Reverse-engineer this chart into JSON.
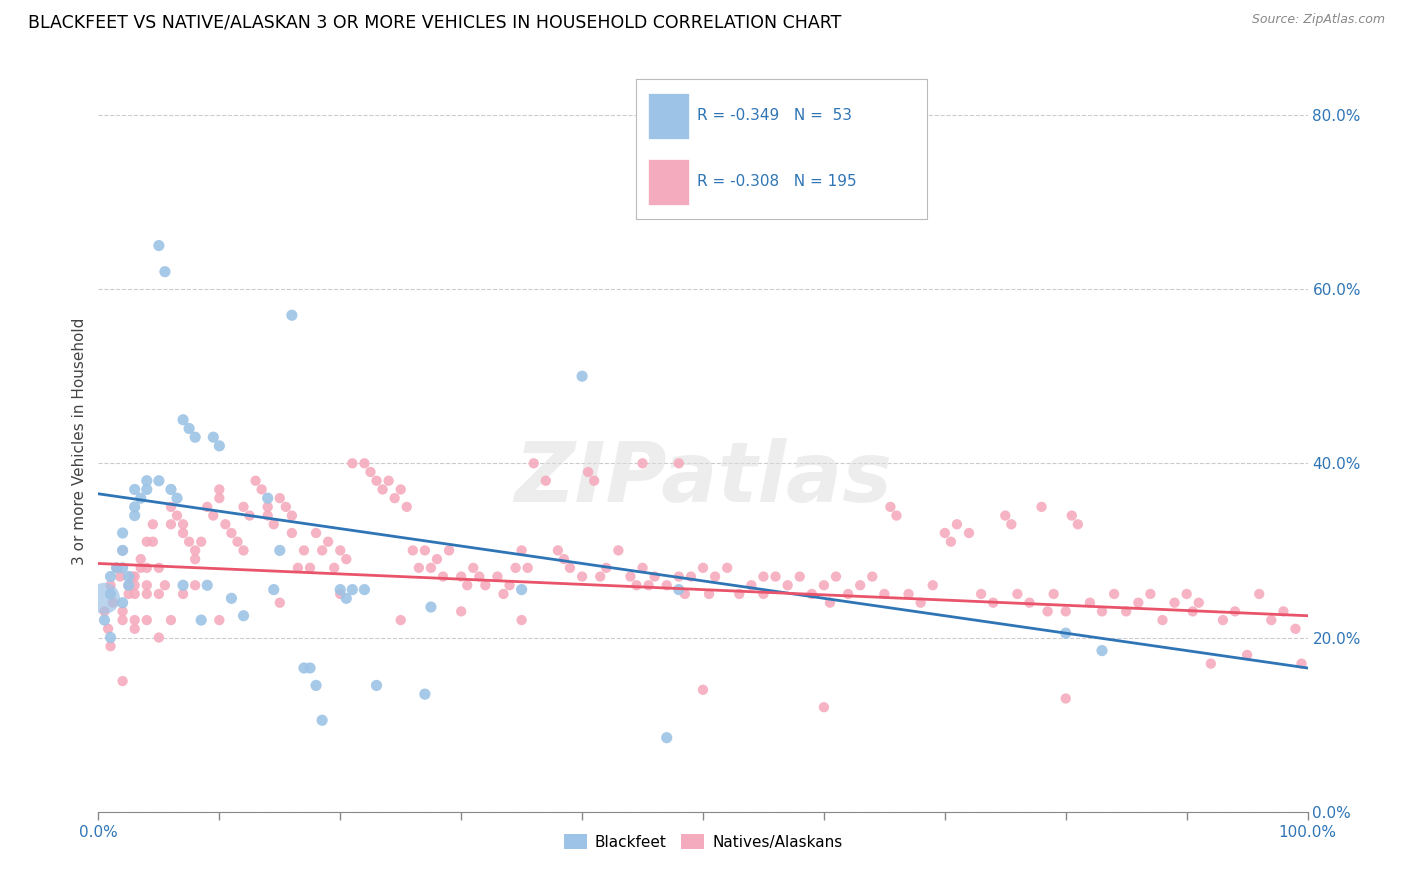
{
  "title": "BLACKFEET VS NATIVE/ALASKAN 3 OR MORE VEHICLES IN HOUSEHOLD CORRELATION CHART",
  "source": "Source: ZipAtlas.com",
  "ylabel": "3 or more Vehicles in Household",
  "xlim": [
    0,
    1.0
  ],
  "ylim": [
    0,
    0.85
  ],
  "xticks_major": [
    0.0,
    0.1,
    0.2,
    0.3,
    0.4,
    0.5,
    0.6,
    0.7,
    0.8,
    0.9,
    1.0
  ],
  "xticks_labeled": [
    0.0,
    1.0
  ],
  "yticks_right": [
    0.0,
    0.2,
    0.4,
    0.6,
    0.8
  ],
  "blue_R": -0.349,
  "blue_N": 53,
  "pink_R": -0.308,
  "pink_N": 195,
  "blue_color": "#9DC3E6",
  "pink_color": "#F4ABBD",
  "blue_line_color": "#2F75B6",
  "pink_line_color": "#E9546B",
  "watermark": "ZIPatlas",
  "legend_label_blue": "Blackfeet",
  "legend_label_pink": "Natives/Alaskans",
  "blue_scatter": [
    [
      0.005,
      0.22
    ],
    [
      0.01,
      0.2
    ],
    [
      0.01,
      0.25
    ],
    [
      0.01,
      0.27
    ],
    [
      0.015,
      0.28
    ],
    [
      0.02,
      0.28
    ],
    [
      0.02,
      0.24
    ],
    [
      0.02,
      0.3
    ],
    [
      0.02,
      0.32
    ],
    [
      0.025,
      0.27
    ],
    [
      0.025,
      0.26
    ],
    [
      0.03,
      0.35
    ],
    [
      0.03,
      0.34
    ],
    [
      0.03,
      0.37
    ],
    [
      0.035,
      0.36
    ],
    [
      0.04,
      0.38
    ],
    [
      0.04,
      0.37
    ],
    [
      0.05,
      0.65
    ],
    [
      0.055,
      0.62
    ],
    [
      0.05,
      0.38
    ],
    [
      0.06,
      0.37
    ],
    [
      0.065,
      0.36
    ],
    [
      0.07,
      0.45
    ],
    [
      0.075,
      0.44
    ],
    [
      0.07,
      0.26
    ],
    [
      0.08,
      0.43
    ],
    [
      0.085,
      0.22
    ],
    [
      0.09,
      0.26
    ],
    [
      0.095,
      0.43
    ],
    [
      0.1,
      0.42
    ],
    [
      0.11,
      0.245
    ],
    [
      0.12,
      0.225
    ],
    [
      0.14,
      0.36
    ],
    [
      0.145,
      0.255
    ],
    [
      0.15,
      0.3
    ],
    [
      0.16,
      0.57
    ],
    [
      0.17,
      0.165
    ],
    [
      0.175,
      0.165
    ],
    [
      0.18,
      0.145
    ],
    [
      0.185,
      0.105
    ],
    [
      0.2,
      0.255
    ],
    [
      0.205,
      0.245
    ],
    [
      0.21,
      0.255
    ],
    [
      0.22,
      0.255
    ],
    [
      0.23,
      0.145
    ],
    [
      0.27,
      0.135
    ],
    [
      0.275,
      0.235
    ],
    [
      0.35,
      0.255
    ],
    [
      0.4,
      0.5
    ],
    [
      0.47,
      0.085
    ],
    [
      0.48,
      0.255
    ],
    [
      0.8,
      0.205
    ],
    [
      0.83,
      0.185
    ]
  ],
  "pink_scatter": [
    [
      0.005,
      0.23
    ],
    [
      0.008,
      0.21
    ],
    [
      0.01,
      0.19
    ],
    [
      0.01,
      0.26
    ],
    [
      0.012,
      0.24
    ],
    [
      0.015,
      0.28
    ],
    [
      0.018,
      0.27
    ],
    [
      0.02,
      0.3
    ],
    [
      0.02,
      0.23
    ],
    [
      0.02,
      0.22
    ],
    [
      0.025,
      0.26
    ],
    [
      0.025,
      0.25
    ],
    [
      0.028,
      0.27
    ],
    [
      0.03,
      0.21
    ],
    [
      0.03,
      0.27
    ],
    [
      0.03,
      0.26
    ],
    [
      0.03,
      0.25
    ],
    [
      0.035,
      0.28
    ],
    [
      0.035,
      0.29
    ],
    [
      0.04,
      0.31
    ],
    [
      0.04,
      0.28
    ],
    [
      0.04,
      0.26
    ],
    [
      0.04,
      0.25
    ],
    [
      0.045,
      0.31
    ],
    [
      0.045,
      0.33
    ],
    [
      0.05,
      0.28
    ],
    [
      0.05,
      0.25
    ],
    [
      0.055,
      0.26
    ],
    [
      0.06,
      0.35
    ],
    [
      0.06,
      0.33
    ],
    [
      0.065,
      0.34
    ],
    [
      0.07,
      0.33
    ],
    [
      0.07,
      0.32
    ],
    [
      0.075,
      0.31
    ],
    [
      0.08,
      0.3
    ],
    [
      0.08,
      0.29
    ],
    [
      0.085,
      0.31
    ],
    [
      0.09,
      0.35
    ],
    [
      0.095,
      0.34
    ],
    [
      0.1,
      0.36
    ],
    [
      0.1,
      0.37
    ],
    [
      0.105,
      0.33
    ],
    [
      0.11,
      0.32
    ],
    [
      0.115,
      0.31
    ],
    [
      0.12,
      0.3
    ],
    [
      0.12,
      0.35
    ],
    [
      0.125,
      0.34
    ],
    [
      0.13,
      0.38
    ],
    [
      0.135,
      0.37
    ],
    [
      0.14,
      0.35
    ],
    [
      0.14,
      0.34
    ],
    [
      0.145,
      0.33
    ],
    [
      0.15,
      0.36
    ],
    [
      0.155,
      0.35
    ],
    [
      0.16,
      0.34
    ],
    [
      0.16,
      0.32
    ],
    [
      0.165,
      0.28
    ],
    [
      0.17,
      0.3
    ],
    [
      0.175,
      0.28
    ],
    [
      0.18,
      0.32
    ],
    [
      0.185,
      0.3
    ],
    [
      0.19,
      0.31
    ],
    [
      0.195,
      0.28
    ],
    [
      0.2,
      0.3
    ],
    [
      0.205,
      0.29
    ],
    [
      0.21,
      0.4
    ],
    [
      0.22,
      0.4
    ],
    [
      0.225,
      0.39
    ],
    [
      0.23,
      0.38
    ],
    [
      0.235,
      0.37
    ],
    [
      0.24,
      0.38
    ],
    [
      0.245,
      0.36
    ],
    [
      0.25,
      0.37
    ],
    [
      0.255,
      0.35
    ],
    [
      0.26,
      0.3
    ],
    [
      0.265,
      0.28
    ],
    [
      0.27,
      0.3
    ],
    [
      0.275,
      0.28
    ],
    [
      0.28,
      0.29
    ],
    [
      0.285,
      0.27
    ],
    [
      0.29,
      0.3
    ],
    [
      0.3,
      0.27
    ],
    [
      0.305,
      0.26
    ],
    [
      0.31,
      0.28
    ],
    [
      0.315,
      0.27
    ],
    [
      0.32,
      0.26
    ],
    [
      0.33,
      0.27
    ],
    [
      0.335,
      0.25
    ],
    [
      0.34,
      0.26
    ],
    [
      0.345,
      0.28
    ],
    [
      0.35,
      0.3
    ],
    [
      0.355,
      0.28
    ],
    [
      0.36,
      0.4
    ],
    [
      0.37,
      0.38
    ],
    [
      0.38,
      0.3
    ],
    [
      0.385,
      0.29
    ],
    [
      0.39,
      0.28
    ],
    [
      0.4,
      0.27
    ],
    [
      0.405,
      0.39
    ],
    [
      0.41,
      0.38
    ],
    [
      0.415,
      0.27
    ],
    [
      0.42,
      0.28
    ],
    [
      0.43,
      0.3
    ],
    [
      0.44,
      0.27
    ],
    [
      0.445,
      0.26
    ],
    [
      0.45,
      0.28
    ],
    [
      0.455,
      0.26
    ],
    [
      0.46,
      0.27
    ],
    [
      0.47,
      0.26
    ],
    [
      0.48,
      0.27
    ],
    [
      0.485,
      0.25
    ],
    [
      0.49,
      0.27
    ],
    [
      0.5,
      0.28
    ],
    [
      0.505,
      0.25
    ],
    [
      0.51,
      0.27
    ],
    [
      0.52,
      0.28
    ],
    [
      0.53,
      0.25
    ],
    [
      0.54,
      0.26
    ],
    [
      0.55,
      0.25
    ],
    [
      0.56,
      0.27
    ],
    [
      0.57,
      0.26
    ],
    [
      0.58,
      0.27
    ],
    [
      0.59,
      0.25
    ],
    [
      0.6,
      0.26
    ],
    [
      0.605,
      0.24
    ],
    [
      0.61,
      0.27
    ],
    [
      0.62,
      0.25
    ],
    [
      0.63,
      0.26
    ],
    [
      0.64,
      0.27
    ],
    [
      0.65,
      0.25
    ],
    [
      0.655,
      0.35
    ],
    [
      0.66,
      0.34
    ],
    [
      0.67,
      0.25
    ],
    [
      0.68,
      0.24
    ],
    [
      0.69,
      0.26
    ],
    [
      0.7,
      0.32
    ],
    [
      0.705,
      0.31
    ],
    [
      0.71,
      0.33
    ],
    [
      0.72,
      0.32
    ],
    [
      0.73,
      0.25
    ],
    [
      0.74,
      0.24
    ],
    [
      0.75,
      0.34
    ],
    [
      0.755,
      0.33
    ],
    [
      0.76,
      0.25
    ],
    [
      0.77,
      0.24
    ],
    [
      0.78,
      0.35
    ],
    [
      0.785,
      0.23
    ],
    [
      0.79,
      0.25
    ],
    [
      0.8,
      0.23
    ],
    [
      0.805,
      0.34
    ],
    [
      0.81,
      0.33
    ],
    [
      0.82,
      0.24
    ],
    [
      0.83,
      0.23
    ],
    [
      0.84,
      0.25
    ],
    [
      0.85,
      0.23
    ],
    [
      0.86,
      0.24
    ],
    [
      0.87,
      0.25
    ],
    [
      0.88,
      0.22
    ],
    [
      0.89,
      0.24
    ],
    [
      0.9,
      0.25
    ],
    [
      0.905,
      0.23
    ],
    [
      0.91,
      0.24
    ],
    [
      0.92,
      0.17
    ],
    [
      0.93,
      0.22
    ],
    [
      0.94,
      0.23
    ],
    [
      0.95,
      0.18
    ],
    [
      0.96,
      0.25
    ],
    [
      0.97,
      0.22
    ],
    [
      0.98,
      0.23
    ],
    [
      0.99,
      0.21
    ],
    [
      0.995,
      0.17
    ],
    [
      0.5,
      0.14
    ],
    [
      0.6,
      0.12
    ],
    [
      0.8,
      0.13
    ],
    [
      0.55,
      0.27
    ],
    [
      0.45,
      0.4
    ],
    [
      0.48,
      0.4
    ],
    [
      0.3,
      0.23
    ],
    [
      0.2,
      0.25
    ],
    [
      0.35,
      0.22
    ],
    [
      0.25,
      0.22
    ],
    [
      0.15,
      0.24
    ],
    [
      0.1,
      0.22
    ],
    [
      0.08,
      0.26
    ],
    [
      0.07,
      0.25
    ],
    [
      0.06,
      0.22
    ],
    [
      0.05,
      0.2
    ],
    [
      0.04,
      0.22
    ],
    [
      0.03,
      0.22
    ],
    [
      0.02,
      0.15
    ]
  ],
  "blue_line_y_start": 0.365,
  "blue_line_y_end": 0.165,
  "pink_line_y_start": 0.285,
  "pink_line_y_end": 0.225,
  "grid_color": "#CCCCCC",
  "tick_color": "#888888",
  "axis_label_color": "#2F75B6"
}
